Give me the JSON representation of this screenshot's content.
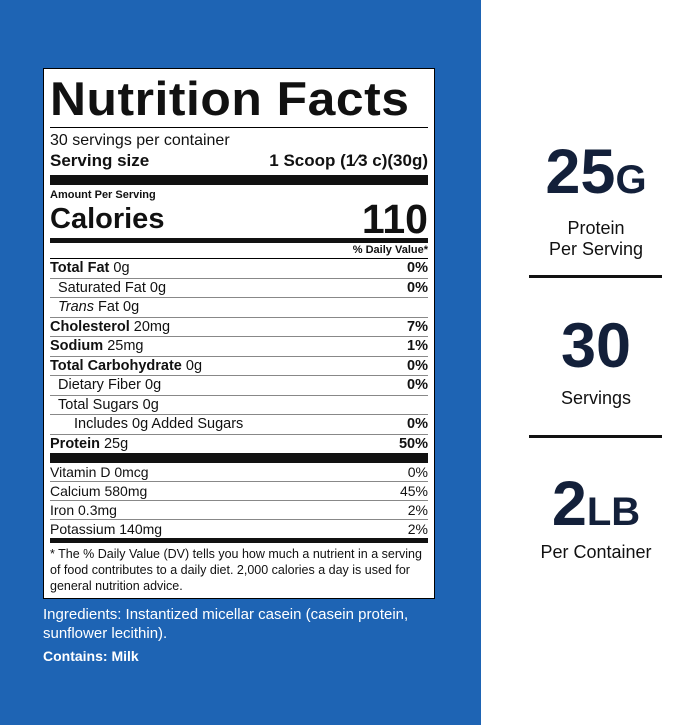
{
  "colors": {
    "panel": "#1e64b4",
    "stat_text": "#13203a"
  },
  "label": {
    "title": "Nutrition Facts",
    "servings_per_container": "30 servings per container",
    "serving_size_label": "Serving size",
    "serving_size_value": "1 Scoop (1⁄3 c)(30g)",
    "amount_per_serving": "Amount Per Serving",
    "calories_label": "Calories",
    "calories_value": "110",
    "dv_header": "% Daily Value*",
    "nutrients": [
      {
        "name": "Total Fat",
        "amount": "0g",
        "dv": "0%"
      },
      {
        "name": "Saturated Fat",
        "amount": "0g",
        "dv": "0%"
      },
      {
        "name_italic": "Trans",
        "name": "Fat",
        "amount": "0g",
        "dv": ""
      },
      {
        "name": "Cholesterol",
        "amount": "20mg",
        "dv": "7%"
      },
      {
        "name": "Sodium",
        "amount": "25mg",
        "dv": "1%"
      },
      {
        "name": "Total Carbohydrate",
        "amount": "0g",
        "dv": "0%"
      },
      {
        "name": "Dietary Fiber",
        "amount": "0g",
        "dv": "0%"
      },
      {
        "name": "Total Sugars",
        "amount": "0g",
        "dv": ""
      },
      {
        "name": "Includes 0g Added Sugars",
        "amount": "",
        "dv": "0%"
      },
      {
        "name": "Protein",
        "amount": "25g",
        "dv": "50%"
      }
    ],
    "vitamins": [
      {
        "name": "Vitamin D",
        "amount": "0mcg",
        "dv": "0%"
      },
      {
        "name": "Calcium",
        "amount": "580mg",
        "dv": "45%"
      },
      {
        "name": "Iron",
        "amount": "0.3mg",
        "dv": "2%"
      },
      {
        "name": "Potassium",
        "amount": "140mg",
        "dv": "2%"
      }
    ],
    "footnote": "* The % Daily Value (DV) tells you how much a nutrient in a serving of food contributes to a daily diet. 2,000 calories a day is used for general nutrition advice."
  },
  "ingredients": "Ingredients: Instantized micellar casein (casein protein, sunflower lecithin).",
  "contains": "Contains: Milk",
  "stats": [
    {
      "number": "25",
      "unit": "G",
      "line1": "Protein",
      "line2": "Per Serving"
    },
    {
      "number": "30",
      "unit": "",
      "line1": "Servings",
      "line2": ""
    },
    {
      "number": "2",
      "unit": "LB",
      "line1": "Per Container",
      "line2": ""
    }
  ]
}
